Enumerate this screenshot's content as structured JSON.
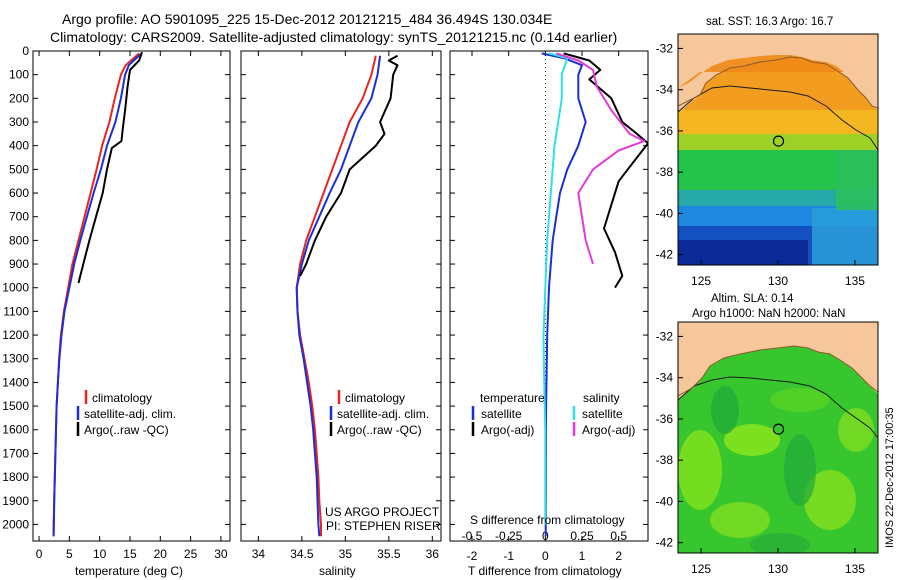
{
  "header": {
    "line1": "Argo profile: AO 5901095_225 15-Dec-2012 20121215_484 36.494S 130.034E",
    "line2": "Climatology: CARS2009. Satellite-adjusted climatology: synTS_20121215.nc (0.14d earlier)"
  },
  "colors": {
    "climatology": "#e8251f",
    "satellite": "#1c2fd6",
    "argo": "#000000",
    "sat_salinity": "#30e0e8",
    "argo_salinity": "#e23ad8"
  },
  "depth_axis": {
    "ticks": [
      0,
      100,
      200,
      300,
      400,
      500,
      600,
      700,
      800,
      900,
      1000,
      1100,
      1200,
      1300,
      1400,
      1500,
      1600,
      1700,
      1800,
      1900,
      2000
    ],
    "ylim": [
      0,
      2070
    ]
  },
  "chart_data": [
    {
      "id": "temperature",
      "type": "line",
      "xlabel": "temperature (deg C)",
      "xlim": [
        -1,
        31.5
      ],
      "xticks": [
        0,
        5,
        10,
        15,
        20,
        25,
        30
      ],
      "ylim": [
        0,
        2070
      ],
      "legend": {
        "placement": "lower-middle",
        "entries": [
          "climatology",
          "satellite-adj. clim.",
          "Argo(..raw -QC)"
        ]
      },
      "series": [
        {
          "name": "climatology",
          "color": "#e8251f",
          "points": [
            [
              16.5,
              10
            ],
            [
              14.3,
              60
            ],
            [
              13.5,
              100
            ],
            [
              12.5,
              200
            ],
            [
              11.6,
              300
            ],
            [
              10.4,
              400
            ],
            [
              9.5,
              500
            ],
            [
              8.5,
              600
            ],
            [
              7.5,
              700
            ],
            [
              6.5,
              800
            ],
            [
              5.5,
              900
            ],
            [
              4.8,
              1000
            ],
            [
              4.1,
              1100
            ],
            [
              3.6,
              1200
            ],
            [
              3.3,
              1300
            ],
            [
              3.1,
              1400
            ],
            [
              2.9,
              1500
            ],
            [
              2.8,
              1600
            ],
            [
              2.7,
              1700
            ],
            [
              2.6,
              1800
            ],
            [
              2.5,
              1900
            ],
            [
              2.4,
              2000
            ],
            [
              2.4,
              2050
            ]
          ]
        },
        {
          "name": "satellite-adj. clim.",
          "color": "#1c2fd6",
          "points": [
            [
              16.9,
              10
            ],
            [
              14.8,
              60
            ],
            [
              14.2,
              100
            ],
            [
              13.5,
              200
            ],
            [
              12.6,
              300
            ],
            [
              11.2,
              400
            ],
            [
              10.2,
              500
            ],
            [
              9.0,
              600
            ],
            [
              7.9,
              700
            ],
            [
              6.8,
              800
            ],
            [
              5.8,
              900
            ],
            [
              5.0,
              1000
            ],
            [
              4.2,
              1100
            ],
            [
              3.7,
              1200
            ],
            [
              3.35,
              1300
            ],
            [
              3.1,
              1400
            ],
            [
              2.9,
              1500
            ],
            [
              2.8,
              1600
            ],
            [
              2.7,
              1700
            ],
            [
              2.6,
              1800
            ],
            [
              2.5,
              1900
            ],
            [
              2.45,
              2000
            ],
            [
              2.4,
              2050
            ]
          ]
        },
        {
          "name": "Argo(..raw -QC)",
          "color": "#000000",
          "points": [
            [
              17.0,
              5
            ],
            [
              16.5,
              40
            ],
            [
              15.0,
              80
            ],
            [
              14.6,
              150
            ],
            [
              14.2,
              250
            ],
            [
              13.8,
              330
            ],
            [
              13.6,
              380
            ],
            [
              12.0,
              410
            ],
            [
              11.2,
              500
            ],
            [
              10.5,
              600
            ],
            [
              9.4,
              700
            ],
            [
              8.3,
              800
            ],
            [
              7.3,
              900
            ],
            [
              6.5,
              980
            ]
          ]
        }
      ]
    },
    {
      "id": "salinity",
      "type": "line",
      "xlabel": "salinity",
      "xlim": [
        33.8,
        36.1
      ],
      "xticks": [
        34,
        34.5,
        35,
        35.5,
        36
      ],
      "ylim": [
        0,
        2070
      ],
      "legend": {
        "placement": "lower-middle",
        "entries": [
          "climatology",
          "satellite-adj. clim.",
          "Argo(..raw -QC)"
        ]
      },
      "annotation": {
        "line1": "US ARGO PROJECT",
        "line2": "PI: STEPHEN RISER"
      },
      "series": [
        {
          "name": "climatology",
          "color": "#e8251f",
          "points": [
            [
              35.35,
              20
            ],
            [
              35.3,
              100
            ],
            [
              35.2,
              200
            ],
            [
              35.05,
              300
            ],
            [
              34.95,
              400
            ],
            [
              34.85,
              500
            ],
            [
              34.75,
              600
            ],
            [
              34.65,
              700
            ],
            [
              34.55,
              800
            ],
            [
              34.48,
              900
            ],
            [
              34.44,
              1000
            ],
            [
              34.45,
              1100
            ],
            [
              34.48,
              1200
            ],
            [
              34.53,
              1300
            ],
            [
              34.58,
              1400
            ],
            [
              34.62,
              1500
            ],
            [
              34.65,
              1600
            ],
            [
              34.67,
              1700
            ],
            [
              34.69,
              1800
            ],
            [
              34.7,
              1900
            ],
            [
              34.72,
              2000
            ],
            [
              34.72,
              2050
            ]
          ]
        },
        {
          "name": "satellite-adj. clim.",
          "color": "#1c2fd6",
          "points": [
            [
              35.4,
              20
            ],
            [
              35.37,
              100
            ],
            [
              35.3,
              200
            ],
            [
              35.15,
              300
            ],
            [
              35.05,
              400
            ],
            [
              34.95,
              500
            ],
            [
              34.82,
              600
            ],
            [
              34.7,
              700
            ],
            [
              34.58,
              800
            ],
            [
              34.5,
              900
            ],
            [
              34.44,
              1000
            ],
            [
              34.45,
              1100
            ],
            [
              34.47,
              1200
            ],
            [
              34.52,
              1300
            ],
            [
              34.56,
              1400
            ],
            [
              34.6,
              1500
            ],
            [
              34.63,
              1600
            ],
            [
              34.65,
              1700
            ],
            [
              34.67,
              1800
            ],
            [
              34.68,
              1900
            ],
            [
              34.69,
              2000
            ],
            [
              34.7,
              2050
            ]
          ]
        },
        {
          "name": "Argo(..raw -QC)",
          "color": "#000000",
          "points": [
            [
              35.6,
              20
            ],
            [
              35.5,
              40
            ],
            [
              35.6,
              60
            ],
            [
              35.55,
              100
            ],
            [
              35.52,
              200
            ],
            [
              35.4,
              300
            ],
            [
              35.45,
              350
            ],
            [
              35.35,
              400
            ],
            [
              35.05,
              500
            ],
            [
              34.95,
              600
            ],
            [
              34.78,
              700
            ],
            [
              34.65,
              800
            ],
            [
              34.55,
              900
            ],
            [
              34.48,
              950
            ]
          ]
        }
      ]
    },
    {
      "id": "difference",
      "type": "line",
      "xlabel": "T difference from climatology",
      "xlabel_top": "S difference from climatology",
      "xlim": [
        -2.6,
        2.8
      ],
      "xticks": [
        -2,
        -1,
        0,
        1,
        2
      ],
      "xticks_s": [
        "-0.5",
        "-0.25",
        "0",
        "0.25",
        "0.5"
      ],
      "ylim": [
        0,
        2070
      ],
      "legend": {
        "placement": "lower-middle",
        "left_title": "temperature",
        "right_title": "salinity",
        "entries": [
          "satellite",
          "Argo(-adj)",
          "satellite",
          "Argo(-adj)"
        ]
      },
      "series": [
        {
          "name": "satellite",
          "color": "#1c2fd6",
          "points": [
            [
              -0.1,
              10
            ],
            [
              0.5,
              30
            ],
            [
              1.0,
              60
            ],
            [
              0.9,
              100
            ],
            [
              0.9,
              200
            ],
            [
              1.1,
              300
            ],
            [
              0.9,
              400
            ],
            [
              0.6,
              500
            ],
            [
              0.4,
              600
            ],
            [
              0.3,
              700
            ],
            [
              0.2,
              800
            ],
            [
              0.15,
              900
            ],
            [
              0.1,
              1000
            ],
            [
              0.05,
              1200
            ],
            [
              0.02,
              1500
            ],
            [
              0.01,
              2000
            ],
            [
              0.01,
              2050
            ]
          ]
        },
        {
          "name": "Argo(-adj)",
          "color": "#000000",
          "points": [
            [
              0.5,
              10
            ],
            [
              1.2,
              40
            ],
            [
              1.5,
              80
            ],
            [
              1.2,
              120
            ],
            [
              1.8,
              200
            ],
            [
              2.1,
              300
            ],
            [
              2.5,
              350
            ],
            [
              2.8,
              390
            ],
            [
              2.5,
              450
            ],
            [
              2.0,
              550
            ],
            [
              1.8,
              650
            ],
            [
              1.6,
              750
            ],
            [
              1.9,
              850
            ],
            [
              2.1,
              950
            ],
            [
              1.9,
              1000
            ]
          ]
        },
        {
          "name": "satellite",
          "color": "#30e0e8",
          "points": [
            [
              0.1,
              10
            ],
            [
              0.6,
              30
            ],
            [
              0.45,
              100
            ],
            [
              0.45,
              200
            ],
            [
              0.35,
              300
            ],
            [
              0.25,
              400
            ],
            [
              0.15,
              600
            ],
            [
              0.05,
              800
            ],
            [
              0.0,
              1000
            ],
            [
              -0.05,
              1200
            ],
            [
              -0.03,
              1400
            ],
            [
              0.0,
              1600
            ],
            [
              0.0,
              2000
            ]
          ]
        },
        {
          "name": "Argo(-adj)",
          "color": "#e23ad8",
          "points": [
            [
              0.3,
              10
            ],
            [
              0.9,
              40
            ],
            [
              1.3,
              80
            ],
            [
              1.4,
              150
            ],
            [
              1.8,
              250
            ],
            [
              2.3,
              350
            ],
            [
              2.7,
              380
            ],
            [
              2.0,
              420
            ],
            [
              1.3,
              500
            ],
            [
              0.9,
              600
            ],
            [
              1.0,
              700
            ],
            [
              1.1,
              800
            ],
            [
              1.3,
              900
            ]
          ]
        }
      ]
    },
    {
      "id": "sst-map",
      "type": "heatmap",
      "title": "sat. SST: 16.3 Argo: 16.7",
      "xlim": [
        123.5,
        136.5
      ],
      "ylim": [
        -42.5,
        -31.3
      ],
      "xticks": [
        125,
        130,
        135
      ],
      "yticks": [
        -32,
        -34,
        -36,
        -38,
        -40,
        -42
      ],
      "marker": [
        130.034,
        -36.494
      ]
    },
    {
      "id": "sla-map",
      "type": "heatmap",
      "title_line1": "Altim. SLA: 0.14",
      "title_line2": "Argo h1000: NaN h2000: NaN",
      "xlim": [
        123.5,
        136.5
      ],
      "ylim": [
        -42.5,
        -31.3
      ],
      "xticks": [
        125,
        130,
        135
      ],
      "yticks": [
        -32,
        -34,
        -36,
        -38,
        -40,
        -42
      ],
      "marker": [
        130.034,
        -36.494
      ]
    }
  ],
  "watermark": "IMOS 22-Dec-2012 17:00:35"
}
